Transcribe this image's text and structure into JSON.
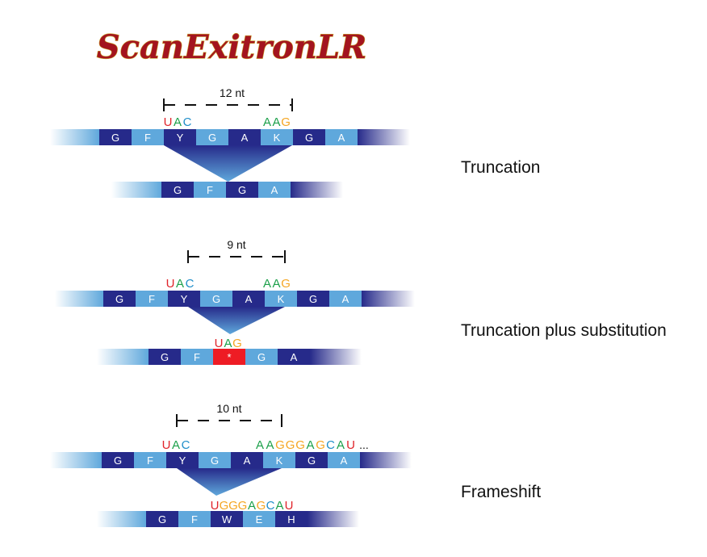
{
  "title": "ScanExitronLR",
  "colors": {
    "title_fill": "#a3141f",
    "title_outline": "#c9a22a",
    "band_light": "#5fa8dc",
    "band_dark": "#262a8a",
    "stop_codon_box": "#ee1c24",
    "nuc_U": "#e0242b",
    "nuc_A": "#1ca04a",
    "nuc_C": "#1f8ec9",
    "nuc_G": "#f5a623"
  },
  "panels": [
    {
      "label": "Truncation",
      "length_label": "12 nt",
      "top_left_codon": [
        "U",
        "A",
        "C"
      ],
      "top_right_seq": [
        "A",
        "A",
        "G"
      ],
      "top_right_ellipsis": "",
      "top_amino_acids": [
        "G",
        "F",
        "Y",
        "G",
        "A",
        "K",
        "G",
        "A"
      ],
      "junction_seq": [],
      "bottom_amino_acids": [
        "G",
        "F",
        "G",
        "A"
      ]
    },
    {
      "label": "Truncation plus substitution",
      "length_label": "9 nt",
      "top_left_codon": [
        "U",
        "A",
        "C"
      ],
      "top_right_seq": [
        "A",
        "A",
        "G"
      ],
      "top_right_ellipsis": "",
      "top_amino_acids": [
        "G",
        "F",
        "Y",
        "G",
        "A",
        "K",
        "G",
        "A"
      ],
      "junction_seq": [
        "U",
        "A",
        "G"
      ],
      "bottom_amino_acids": [
        "G",
        "F",
        "*",
        "G",
        "A"
      ],
      "bottom_stop_index": 2
    },
    {
      "label": "Frameshift",
      "length_label": "10 nt",
      "top_left_codon": [
        "U",
        "A",
        "C"
      ],
      "top_right_seq": [
        "A",
        "A",
        "G",
        "G",
        "G",
        "A",
        "G",
        "C",
        "A",
        "U"
      ],
      "top_right_ellipsis": "...",
      "top_amino_acids": [
        "G",
        "F",
        "Y",
        "G",
        "A",
        "K",
        "G",
        "A"
      ],
      "junction_seq": [
        "U",
        "G",
        "G",
        "G",
        "A",
        "G",
        "C",
        "A",
        "U"
      ],
      "bottom_amino_acids": [
        "G",
        "F",
        "W",
        "E",
        "H"
      ]
    }
  ]
}
